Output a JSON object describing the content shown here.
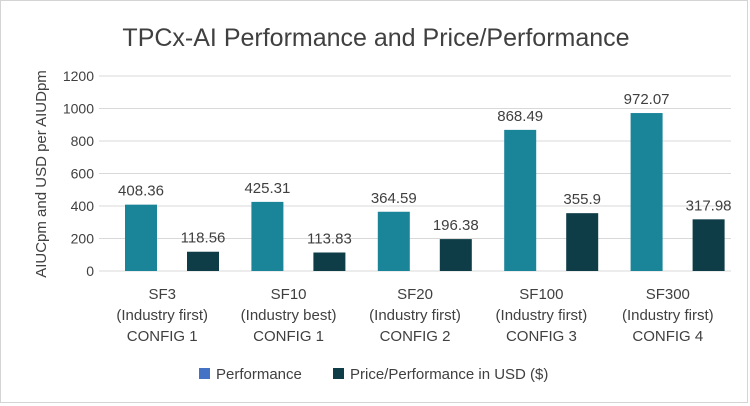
{
  "chart_data": {
    "type": "bar",
    "title": "TPCx-AI Performance and Price/Performance",
    "xlabel": "",
    "ylabel": "AIUCpm and USD per AIUDpm",
    "ylim": [
      0,
      1200
    ],
    "yticks": [
      "0",
      "200",
      "400",
      "600",
      "800",
      "1000",
      "1200"
    ],
    "grid": true,
    "legend_position": "bottom",
    "categories": [
      [
        "SF3",
        "(Industry first)",
        "CONFIG 1"
      ],
      [
        "SF10",
        "(Industry best)",
        "CONFIG 1"
      ],
      [
        "SF20",
        "(Industry first)",
        "CONFIG 2"
      ],
      [
        "SF100",
        "(Industry first)",
        "CONFIG 3"
      ],
      [
        "SF300",
        "(Industry first)",
        "CONFIG 4"
      ]
    ],
    "series": [
      {
        "name": "Performance",
        "color": "#1a8599",
        "values": [
          408.36,
          425.31,
          364.59,
          868.49,
          972.07
        ],
        "labels": [
          "408.36",
          "425.31",
          "364.59",
          "868.49",
          "972.07"
        ]
      },
      {
        "name": "Price/Performance in USD ($)",
        "color": "#0e3d48",
        "values": [
          118.56,
          113.83,
          196.38,
          355.9,
          317.98
        ],
        "labels": [
          "118.56",
          "113.83",
          "196.38",
          "355.9",
          "317.98"
        ]
      }
    ],
    "legend_swatch_colors": [
      "#4472c4",
      "#0e3d48"
    ]
  }
}
